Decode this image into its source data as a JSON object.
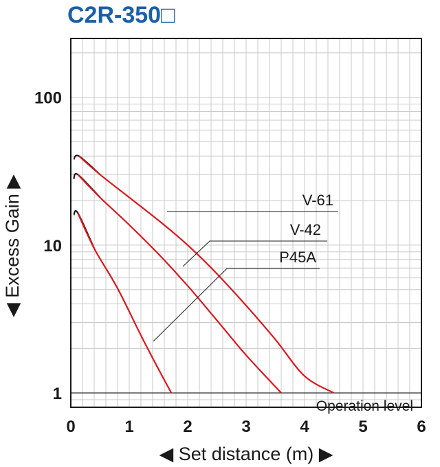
{
  "colors": {
    "title": "#1a5fa8",
    "series": "#d81921",
    "curve_tip": "#1a1a1a",
    "grid": "#c8c8c8",
    "frame": "#1a1a1a",
    "text": "#1a1a1a",
    "background": "#ffffff"
  },
  "chart_data": {
    "type": "line",
    "title": "C2R-350□",
    "xlabel": "◀ Set distance (m) ▶",
    "ylabel": "◀ Excess Gain ▶",
    "xlim": [
      0,
      6
    ],
    "ylim": [
      0.8,
      250
    ],
    "yscale": "log",
    "grid": true,
    "x_ticks": [
      "0",
      "1",
      "2",
      "3",
      "4",
      "5",
      "6"
    ],
    "y_ticks": [
      {
        "value": 1,
        "label": "1"
      },
      {
        "value": 10,
        "label": "10"
      },
      {
        "value": 100,
        "label": "100"
      }
    ],
    "reference_line": {
      "y": 1,
      "label": "Operation level"
    },
    "series": [
      {
        "name": "V-61",
        "x": [
          0.05,
          0.14,
          0.5,
          1.0,
          1.5,
          2.0,
          2.5,
          3.0,
          3.5,
          4.0,
          4.5
        ],
        "y": [
          38,
          40,
          30,
          21,
          14.7,
          10.0,
          6.4,
          3.9,
          2.3,
          1.3,
          1.0
        ]
      },
      {
        "name": "V-42",
        "x": [
          0.05,
          0.12,
          0.5,
          1.0,
          1.5,
          2.0,
          2.5,
          3.0,
          3.6
        ],
        "y": [
          28,
          30,
          21,
          13.7,
          8.7,
          5.3,
          3.1,
          1.8,
          1.0
        ]
      },
      {
        "name": "P45A",
        "x": [
          0.05,
          0.12,
          0.4,
          0.8,
          1.2,
          1.5,
          1.72
        ],
        "y": [
          16,
          16.5,
          9.5,
          5.1,
          2.45,
          1.45,
          1.0
        ]
      }
    ],
    "annotations": [
      {
        "label": "V-61",
        "at": [
          2.3,
          10
        ]
      },
      {
        "label": "V-42",
        "at": [
          2.3,
          5.6
        ]
      },
      {
        "label": "P45A",
        "at": [
          2.3,
          3.3
        ]
      }
    ]
  }
}
